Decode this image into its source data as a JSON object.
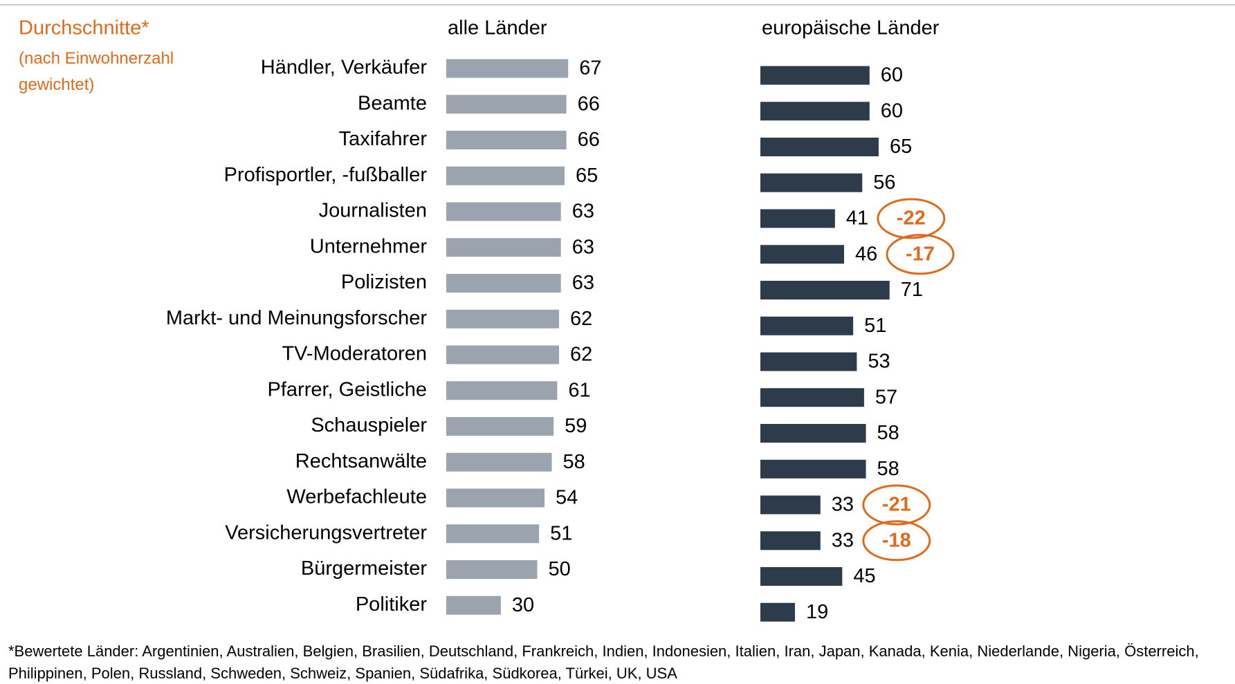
{
  "chart_data": {
    "type": "bar",
    "orientation": "horizontal",
    "title": "Durchschnitte*",
    "subtitle": "(nach Einwohnerzahl gewichtet)",
    "footnote": "*Bewertete Länder: Argentinien, Australien, Belgien, Brasilien, Deutschland, Frankreich, Indien, Indonesien, Italien, Iran, Japan, Kanada, Kenia, Niederlande, Nigeria,  Österreich, Philippinen, Polen, Russland, Schweden, Schweiz, Spanien, Südafrika, Südkorea, Türkei, UK, USA",
    "categories": [
      "Händler, Verkäufer",
      "Beamte",
      "Taxifahrer",
      "Profisportler, -fußballer",
      "Journalisten",
      "Unternehmer",
      "Polizisten",
      "Markt- und Meinungsforscher",
      "TV-Moderatoren",
      "Pfarrer, Geistliche",
      "Schauspieler",
      "Rechtsanwälte",
      "Werbefachleute",
      "Versicherungsvertreter",
      "Bürgermeister",
      "Politiker"
    ],
    "series": [
      {
        "name": "alle Länder",
        "color": "#9aa3ae",
        "values": [
          67,
          66,
          66,
          65,
          63,
          63,
          63,
          62,
          62,
          61,
          59,
          58,
          54,
          51,
          50,
          30
        ]
      },
      {
        "name": "europäische Länder",
        "color": "#2d3b4a",
        "values": [
          60,
          60,
          65,
          56,
          41,
          46,
          71,
          51,
          53,
          57,
          58,
          58,
          33,
          33,
          45,
          19
        ]
      }
    ],
    "annotations": [
      {
        "category": "Journalisten",
        "value": -22
      },
      {
        "category": "Unternehmer",
        "value": -17
      },
      {
        "category": "Werbefachleute",
        "value": -21
      },
      {
        "category": "Versicherungsvertreter",
        "value": -18
      }
    ],
    "annotation_color": "#e06a1b"
  }
}
